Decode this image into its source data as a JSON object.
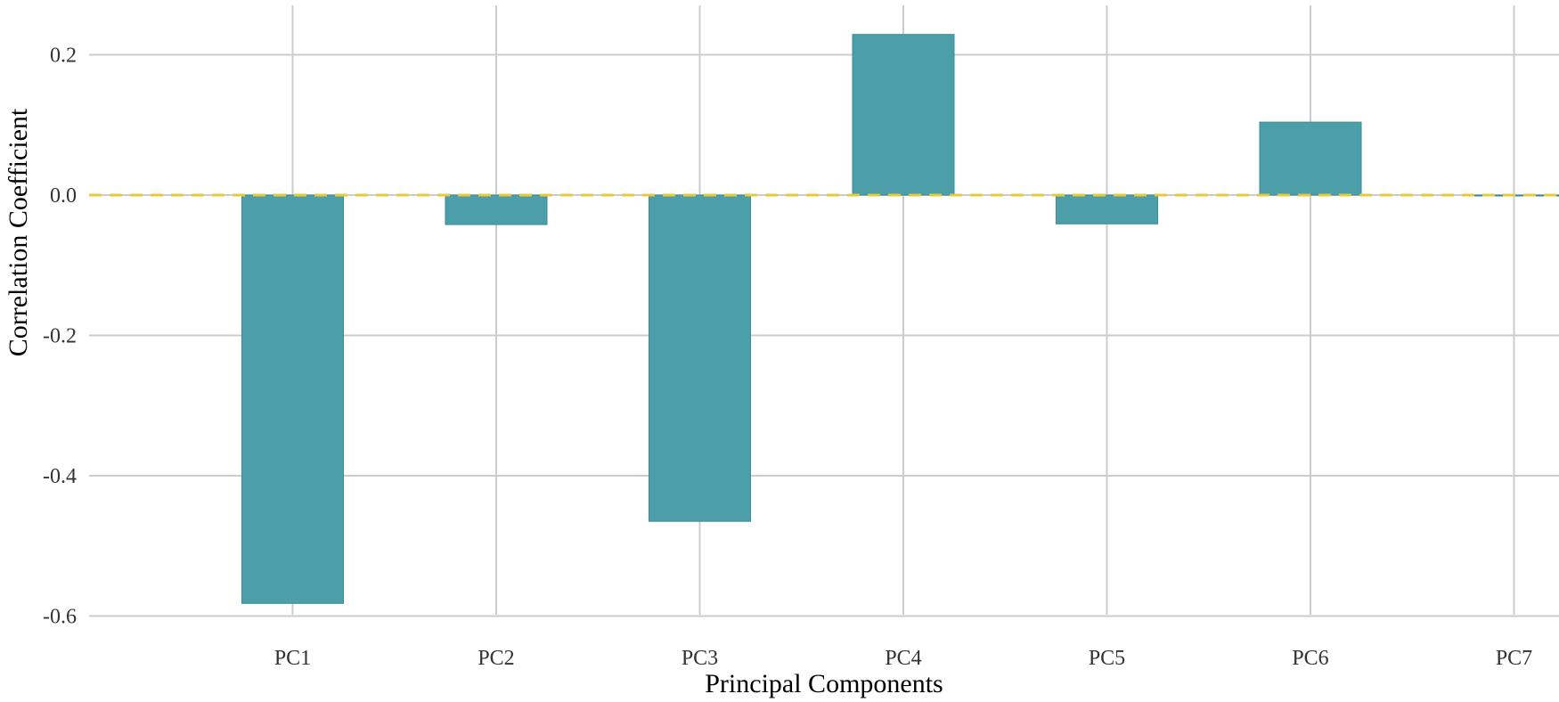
{
  "chart_data": {
    "type": "bar",
    "title": "",
    "xlabel": "Principal Components",
    "ylabel": "Correlation Coefficient",
    "categories": [
      "PC1",
      "PC2",
      "PC3",
      "PC4",
      "PC5",
      "PC6",
      "PC7"
    ],
    "values": [
      -0.582,
      -0.042,
      -0.465,
      0.229,
      -0.041,
      0.104,
      -0.001
    ],
    "ylim": [
      -0.6,
      0.25
    ],
    "yticks": [
      -0.6,
      -0.4,
      -0.2,
      0.0,
      0.2
    ],
    "ytick_labels": [
      "-0.6",
      "-0.4",
      "-0.2",
      "0.0",
      "0.2"
    ],
    "grid": true,
    "reference_line": {
      "y": 0.0,
      "style": "dashed",
      "color": "#e8c93a"
    },
    "colors": {
      "bar_fill": "#4c9fa9",
      "bar_stroke": "#3a8c96",
      "grid": "#cccccc"
    }
  }
}
